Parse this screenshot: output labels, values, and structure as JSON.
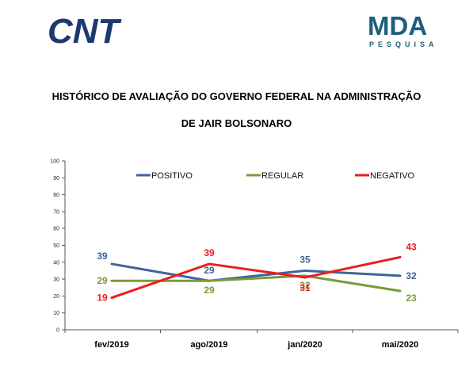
{
  "header": {
    "cnt_logo_text": "CNT",
    "mda_logo_text": "MDA",
    "mda_logo_subtext": "PESQUISA",
    "cnt_color": "#1d3a6e",
    "mda_color": "#1c5f7e"
  },
  "chart_data": {
    "type": "line",
    "title_line1": "HISTÓRICO DE AVALIAÇÃO DO GOVERNO FEDERAL NA ADMINISTRAÇÃO",
    "title_line2": "DE JAIR BOLSONARO",
    "categories": [
      "fev/2019",
      "ago/2019",
      "jan/2020",
      "mai/2020"
    ],
    "ylim": [
      0,
      100
    ],
    "yticks": [
      0,
      10,
      20,
      30,
      40,
      50,
      60,
      70,
      80,
      90,
      100
    ],
    "grid": false,
    "legend_position": "top",
    "series": [
      {
        "name": "POSITIVO",
        "color": "#3f649c",
        "values": [
          39,
          29,
          35,
          32
        ]
      },
      {
        "name": "REGULAR",
        "color": "#7a9a3a",
        "values": [
          29,
          29,
          32,
          23
        ]
      },
      {
        "name": "NEGATIVO",
        "color": "#ee1c1c",
        "values": [
          19,
          39,
          31,
          43
        ]
      }
    ],
    "data_labels": [
      {
        "series": "POSITIVO",
        "values": [
          39,
          29,
          35,
          32
        ]
      },
      {
        "series": "REGULAR",
        "values": [
          29,
          29,
          32,
          23
        ]
      },
      {
        "series": "NEGATIVO",
        "values": [
          19,
          39,
          31,
          43
        ]
      }
    ]
  }
}
